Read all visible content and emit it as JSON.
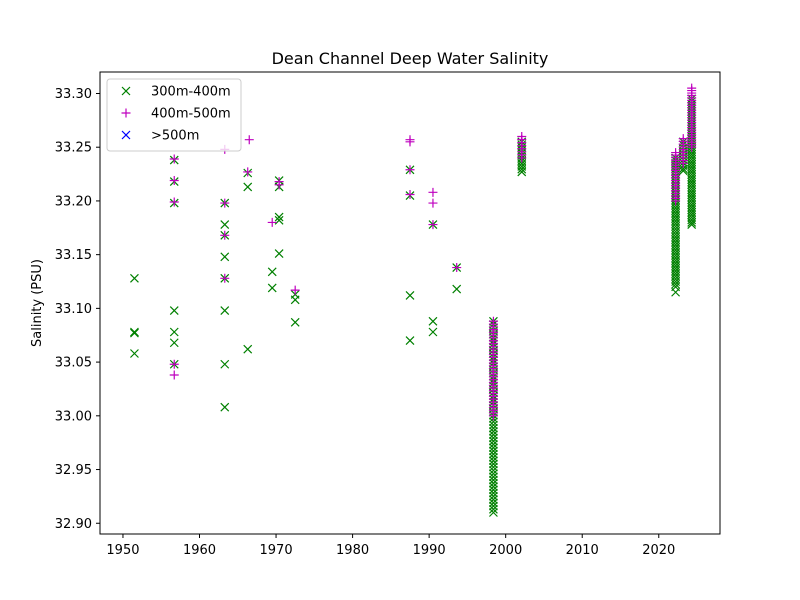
{
  "chart_data": {
    "type": "scatter",
    "title": "Dean Channel Deep Water Salinity",
    "xlabel": "",
    "ylabel": "Salinity (PSU)",
    "xlim": [
      1947,
      2028
    ],
    "ylim": [
      32.89,
      33.32
    ],
    "xticks": [
      "1950",
      "1960",
      "1970",
      "1980",
      "1990",
      "2000",
      "2010",
      "2020"
    ],
    "yticks": [
      "32.90",
      "32.95",
      "33.00",
      "33.05",
      "33.10",
      "33.15",
      "33.20",
      "33.25",
      "33.30"
    ],
    "legend_position": "upper-left",
    "grid": false,
    "series": [
      {
        "name": "300m-400m",
        "marker": "x",
        "color": "#008000",
        "points": [
          [
            1951.5,
            33.128
          ],
          [
            1951.5,
            33.078
          ],
          [
            1951.5,
            33.077
          ],
          [
            1951.5,
            33.058
          ],
          [
            1956.7,
            33.238
          ],
          [
            1956.7,
            33.218
          ],
          [
            1956.7,
            33.198
          ],
          [
            1956.7,
            33.098
          ],
          [
            1956.7,
            33.078
          ],
          [
            1956.7,
            33.068
          ],
          [
            1956.7,
            33.048
          ],
          [
            1963.3,
            33.198
          ],
          [
            1963.3,
            33.178
          ],
          [
            1963.3,
            33.168
          ],
          [
            1963.3,
            33.148
          ],
          [
            1963.3,
            33.128
          ],
          [
            1963.3,
            33.098
          ],
          [
            1963.3,
            33.048
          ],
          [
            1963.3,
            33.008
          ],
          [
            1966.3,
            33.226
          ],
          [
            1966.3,
            33.213
          ],
          [
            1966.3,
            33.062
          ],
          [
            1969.5,
            33.134
          ],
          [
            1969.5,
            33.119
          ],
          [
            1970.4,
            33.219
          ],
          [
            1970.4,
            33.213
          ],
          [
            1970.4,
            33.185
          ],
          [
            1970.4,
            33.182
          ],
          [
            1970.4,
            33.151
          ],
          [
            1972.5,
            33.113
          ],
          [
            1972.5,
            33.108
          ],
          [
            1972.5,
            33.087
          ],
          [
            1987.5,
            33.229
          ],
          [
            1987.5,
            33.205
          ],
          [
            1987.5,
            33.112
          ],
          [
            1987.5,
            33.07
          ],
          [
            1990.5,
            33.178
          ],
          [
            1990.5,
            33.088
          ],
          [
            1990.5,
            33.078
          ],
          [
            1993.6,
            33.138
          ],
          [
            1993.6,
            33.118
          ],
          [
            2022.2,
            33.115
          ],
          [
            2023.2,
            33.228
          ],
          [
            2024.3,
            33.178
          ]
        ],
        "columns": [
          {
            "x": 1998.4,
            "ymin": 32.91,
            "ymax": 33.088,
            "count": 60
          },
          {
            "x": 2002.1,
            "ymin": 33.227,
            "ymax": 33.255,
            "count": 12
          },
          {
            "x": 2022.2,
            "ymin": 33.12,
            "ymax": 33.24,
            "count": 50
          },
          {
            "x": 2023.2,
            "ymin": 33.23,
            "ymax": 33.255,
            "count": 10
          },
          {
            "x": 2024.3,
            "ymin": 33.18,
            "ymax": 33.295,
            "count": 50
          }
        ]
      },
      {
        "name": "400m-500m",
        "marker": "+",
        "color": "#bf00bf",
        "points": [
          [
            1956.7,
            33.239
          ],
          [
            1956.7,
            33.219
          ],
          [
            1956.7,
            33.199
          ],
          [
            1956.7,
            33.048
          ],
          [
            1956.7,
            33.038
          ],
          [
            1963.3,
            33.248
          ],
          [
            1963.3,
            33.198
          ],
          [
            1963.3,
            33.168
          ],
          [
            1963.3,
            33.128
          ],
          [
            1966.5,
            33.257
          ],
          [
            1966.3,
            33.227
          ],
          [
            1969.5,
            33.18
          ],
          [
            1970.4,
            33.218
          ],
          [
            1970.4,
            33.215
          ],
          [
            1972.5,
            33.117
          ],
          [
            1987.5,
            33.257
          ],
          [
            1987.5,
            33.255
          ],
          [
            1987.5,
            33.229
          ],
          [
            1987.5,
            33.206
          ],
          [
            1990.5,
            33.208
          ],
          [
            1990.5,
            33.198
          ],
          [
            1990.5,
            33.178
          ],
          [
            1993.6,
            33.138
          ]
        ],
        "columns": [
          {
            "x": 1998.4,
            "ymin": 33.0,
            "ymax": 33.088,
            "count": 35
          },
          {
            "x": 2002.1,
            "ymin": 33.24,
            "ymax": 33.26,
            "count": 8
          },
          {
            "x": 2022.2,
            "ymin": 33.2,
            "ymax": 33.245,
            "count": 20
          },
          {
            "x": 2023.2,
            "ymin": 33.235,
            "ymax": 33.258,
            "count": 10
          },
          {
            "x": 2024.3,
            "ymin": 33.25,
            "ymax": 33.305,
            "count": 25
          }
        ]
      },
      {
        "name": ">500m",
        "marker": "x",
        "color": "#0000ff",
        "points": [],
        "columns": []
      }
    ]
  }
}
